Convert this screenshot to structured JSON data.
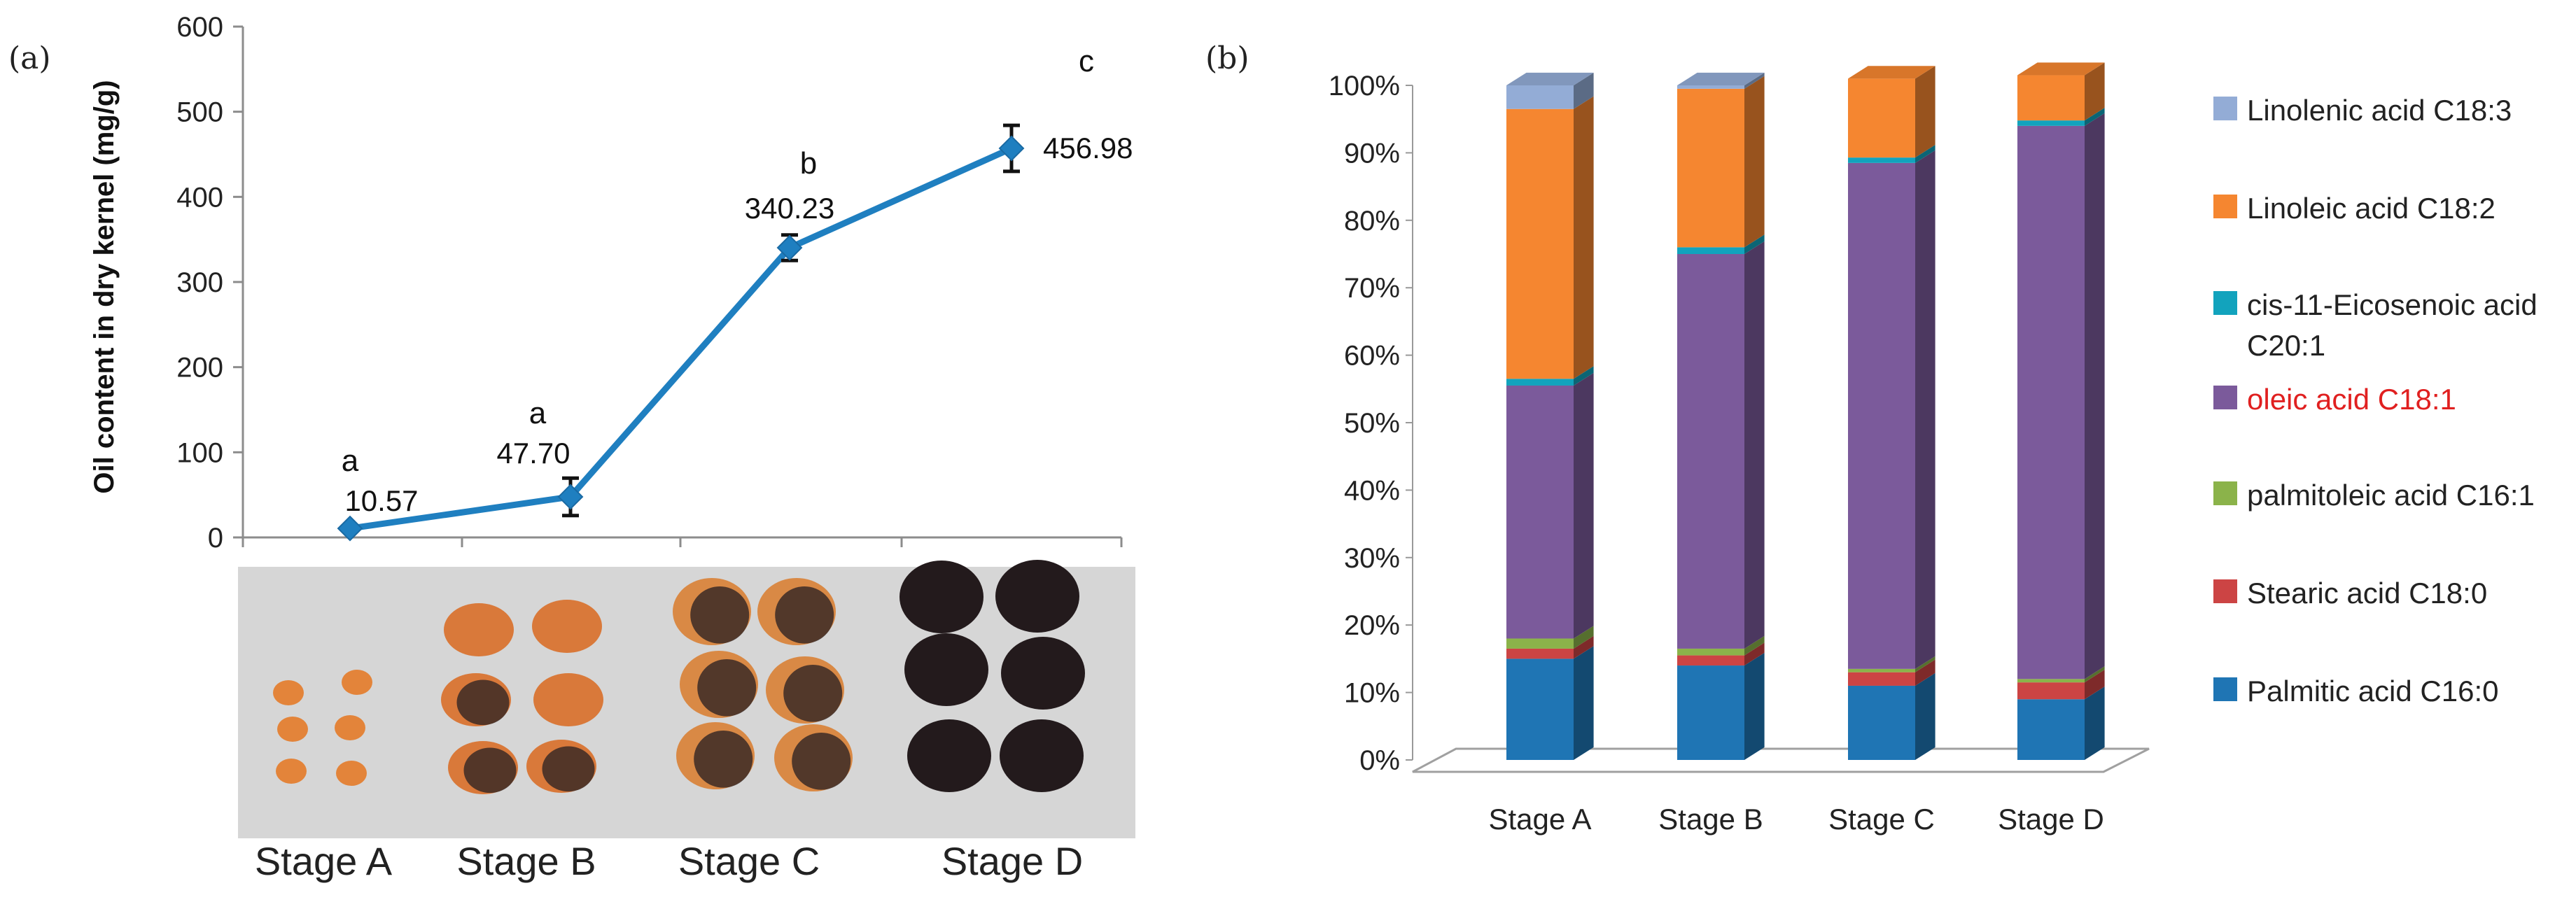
{
  "panel_labels": {
    "a": "(a)",
    "b": "(b)"
  },
  "chart_data": [
    {
      "type": "line",
      "panel": "(a)",
      "title": "",
      "xlabel": "",
      "ylabel": "Oil content in dry kernel (mg/g)",
      "ylim": [
        0,
        600
      ],
      "yticks": [
        "0",
        "100",
        "200",
        "300",
        "400",
        "500",
        "600"
      ],
      "categories": [
        "Stage A",
        "Stage B",
        "Stage C",
        "Stage D"
      ],
      "values": [
        10.57,
        47.7,
        340.23,
        456.98
      ],
      "value_labels": [
        "10.57",
        "47.70",
        "340.23",
        "456.98"
      ],
      "error": [
        2,
        22,
        15,
        27
      ],
      "significance": [
        "a",
        "a",
        "b",
        "c"
      ],
      "series_color": "#1f7fc0",
      "photo_stage_labels": [
        "Stage A",
        "Stage B",
        "Stage C",
        "Stage D"
      ]
    },
    {
      "type": "bar",
      "subtype": "stacked-percent-3d",
      "panel": "(b)",
      "title": "",
      "xlabel": "",
      "ylabel": "",
      "ylim": [
        0,
        100
      ],
      "yticks": [
        "0%",
        "10%",
        "20%",
        "30%",
        "40%",
        "50%",
        "60%",
        "70%",
        "80%",
        "90%",
        "100%"
      ],
      "categories": [
        "Stage A",
        "Stage B",
        "Stage C",
        "Stage D"
      ],
      "series": [
        {
          "name": "Palmitic acid  C16:0",
          "color": "#1f75b4",
          "values": [
            15,
            14,
            11,
            9
          ]
        },
        {
          "name": "Stearic acid C18:0",
          "color": "#cc4444",
          "values": [
            1.5,
            1.5,
            2,
            2.5
          ]
        },
        {
          "name": "palmitoleic acid C16:1",
          "color": "#8bb34a",
          "values": [
            1.5,
            1,
            0.5,
            0.5
          ]
        },
        {
          "name": "oleic acid C18:1",
          "color": "#7b5a9b",
          "values": [
            37.5,
            58.5,
            75,
            82
          ]
        },
        {
          "name": "cis-11-Eicosenoic acid C20:1",
          "color": "#12a3bd",
          "values": [
            1,
            1,
            0.8,
            0.8
          ]
        },
        {
          "name": "Linoleic acid C18:2",
          "color": "#f58630",
          "values": [
            40,
            23.5,
            11.7,
            6.7
          ]
        },
        {
          "name": "Linolenic acid C18:3",
          "color": "#93acd6",
          "values": [
            3.5,
            0.5,
            0,
            0
          ]
        }
      ],
      "legend": [
        {
          "lines": [
            "Linolenic acid C18:3"
          ],
          "color": "#93acd6",
          "text_color": "#222222"
        },
        {
          "lines": [
            "Linoleic acid C18:2"
          ],
          "color": "#f58630",
          "text_color": "#222222"
        },
        {
          "lines": [
            "cis-11-Eicosenoic acid",
            "C20:1"
          ],
          "color": "#12a3bd",
          "text_color": "#222222"
        },
        {
          "lines": [
            "oleic acid C18:1"
          ],
          "color": "#7b5a9b",
          "text_color": "#e02020"
        },
        {
          "lines": [
            "palmitoleic acid C16:1"
          ],
          "color": "#8bb34a",
          "text_color": "#222222"
        },
        {
          "lines": [
            "Stearic acid C18:0"
          ],
          "color": "#cc4444",
          "text_color": "#222222"
        },
        {
          "lines": [
            "Palmitic acid  C16:0"
          ],
          "color": "#1f75b4",
          "text_color": "#222222"
        }
      ],
      "legend_position": "right"
    }
  ]
}
